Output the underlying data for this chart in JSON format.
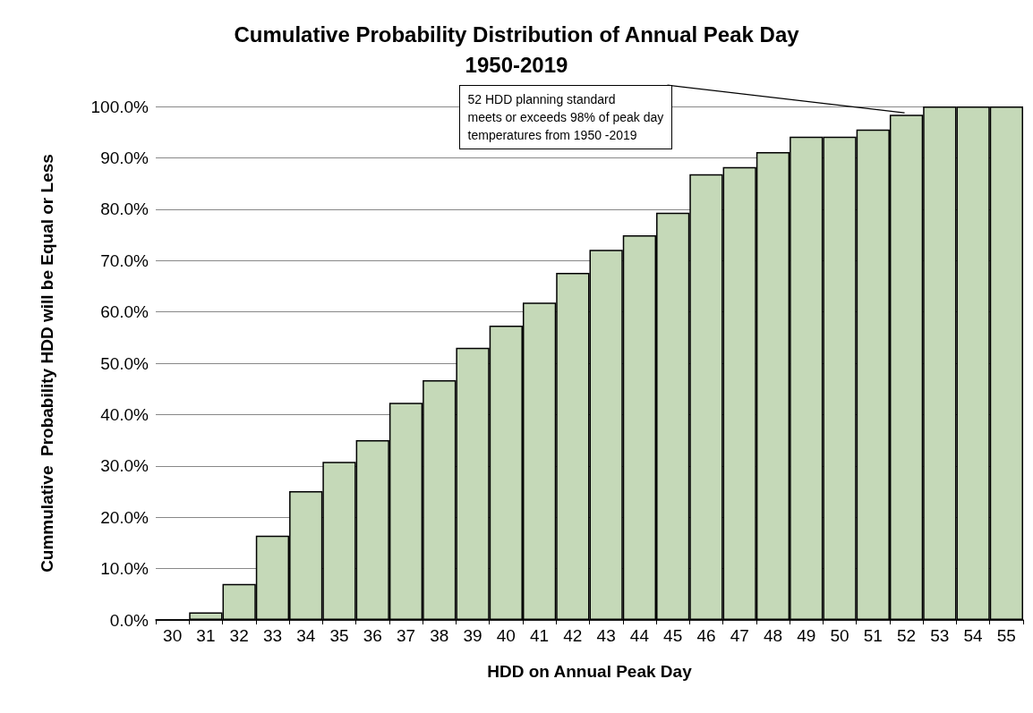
{
  "chart_data": {
    "type": "bar",
    "title": "Cumulative Probability Distribution of Annual Peak Day\n1950-2019",
    "xlabel": "HDD on Annual Peak Day",
    "ylabel": "Cummulative  Probability HDD will be Equal or Less",
    "categories": [
      "30",
      "31",
      "32",
      "33",
      "34",
      "35",
      "36",
      "37",
      "38",
      "39",
      "40",
      "41",
      "42",
      "43",
      "44",
      "45",
      "46",
      "47",
      "48",
      "49",
      "50",
      "51",
      "52",
      "53",
      "54",
      "55"
    ],
    "values": [
      0,
      1.5,
      7.0,
      16.4,
      25.1,
      30.8,
      35.0,
      42.3,
      46.7,
      53.0,
      57.3,
      61.8,
      67.6,
      72.1,
      74.9,
      79.3,
      86.8,
      88.2,
      91.1,
      94.1,
      94.1,
      95.5,
      98.4,
      100,
      100,
      100
    ],
    "color": "#c5d9b8",
    "ylim": [
      0,
      100
    ],
    "yticks": [
      {
        "value": 0,
        "label": "0.0%"
      },
      {
        "value": 10,
        "label": "10.0%"
      },
      {
        "value": 20,
        "label": "20.0%"
      },
      {
        "value": 30,
        "label": "30.0%"
      },
      {
        "value": 40,
        "label": "40.0%"
      },
      {
        "value": 50,
        "label": "50.0%"
      },
      {
        "value": 60,
        "label": "60.0%"
      },
      {
        "value": 70,
        "label": "70.0%"
      },
      {
        "value": 80,
        "label": "80.0%"
      },
      {
        "value": 90,
        "label": "90.0%"
      },
      {
        "value": 100,
        "label": "100.0%"
      }
    ],
    "grid": "y",
    "annotations": [
      {
        "text": "52 HDD planning standard\nmeets or exceeds 98% of peak day\ntemperatures from 1950 -2019",
        "x": "52",
        "y": 98.4
      }
    ]
  }
}
